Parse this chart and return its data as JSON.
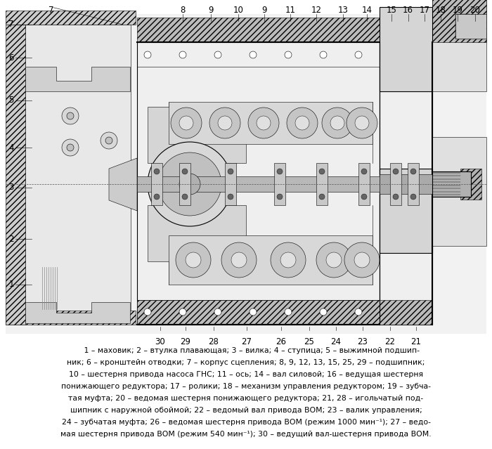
{
  "background_color": "#ffffff",
  "caption_lines": [
    "     1 – маховик; 2 – втулка плавающая; 3 – вилка; 4 – ступица; 5 – выжимной подшип-",
    "ник; 6 – кронштейн отводки; 7 – корпус сцепления; 8, 9, 12, 13, 15, 25, 29 – подшипник;",
    "10 – шестерня привода насоса ГНС; 11 – ось; 14 – вал силовой; 16 – ведущая шестерня",
    "понижающего редуктора; 17 – ролики; 18 – механизм управления редуктором; 19 – зубча-",
    "тая муфта; 20 – ведомая шестерня понижающего редуктора; 21, 28 – игольчатый под-",
    "шипник с наружной обоймой; 22 – ведомый вал привода ВОМ; 23 – валик управления;",
    "24 – зубчатая муфта; 26 – ведомая шестерня привода ВОМ (режим 1000 мин⁻¹); 27 – ведо-",
    "мая шестерня привода ВОМ (режим 540 мин⁻¹); 30 – ведущий вал-шестерня привода ВОМ."
  ],
  "top_labels": [
    [
      "7",
      0.122
    ],
    [
      "8",
      0.3
    ],
    [
      "9",
      0.348
    ],
    [
      "10",
      0.398
    ],
    [
      "9",
      0.441
    ],
    [
      "11",
      0.484
    ],
    [
      "12",
      0.527
    ],
    [
      "13",
      0.572
    ],
    [
      "14",
      0.613
    ],
    [
      "15",
      0.655
    ],
    [
      "16",
      0.685
    ],
    [
      "17",
      0.712
    ],
    [
      "18",
      0.74
    ],
    [
      "19",
      0.769
    ],
    [
      "20",
      0.8
    ]
  ],
  "left_labels": [
    [
      "7",
      0.935
    ],
    [
      "6",
      0.865
    ],
    [
      "5",
      0.785
    ],
    [
      "4",
      0.695
    ],
    [
      "3",
      0.59
    ],
    [
      "2",
      0.46
    ],
    [
      "1",
      0.37
    ]
  ],
  "bottom_labels": [
    [
      "30",
      0.228
    ],
    [
      "29",
      0.263
    ],
    [
      "28",
      0.305
    ],
    [
      "27",
      0.352
    ],
    [
      "26",
      0.403
    ],
    [
      "25",
      0.443
    ],
    [
      "24",
      0.48
    ],
    [
      "23",
      0.517
    ],
    [
      "22",
      0.556
    ],
    [
      "21",
      0.593
    ]
  ],
  "line_color": "#000000",
  "text_color": "#000000",
  "diagram_gray": "#e8e8e8",
  "hatch_color": "#555555"
}
